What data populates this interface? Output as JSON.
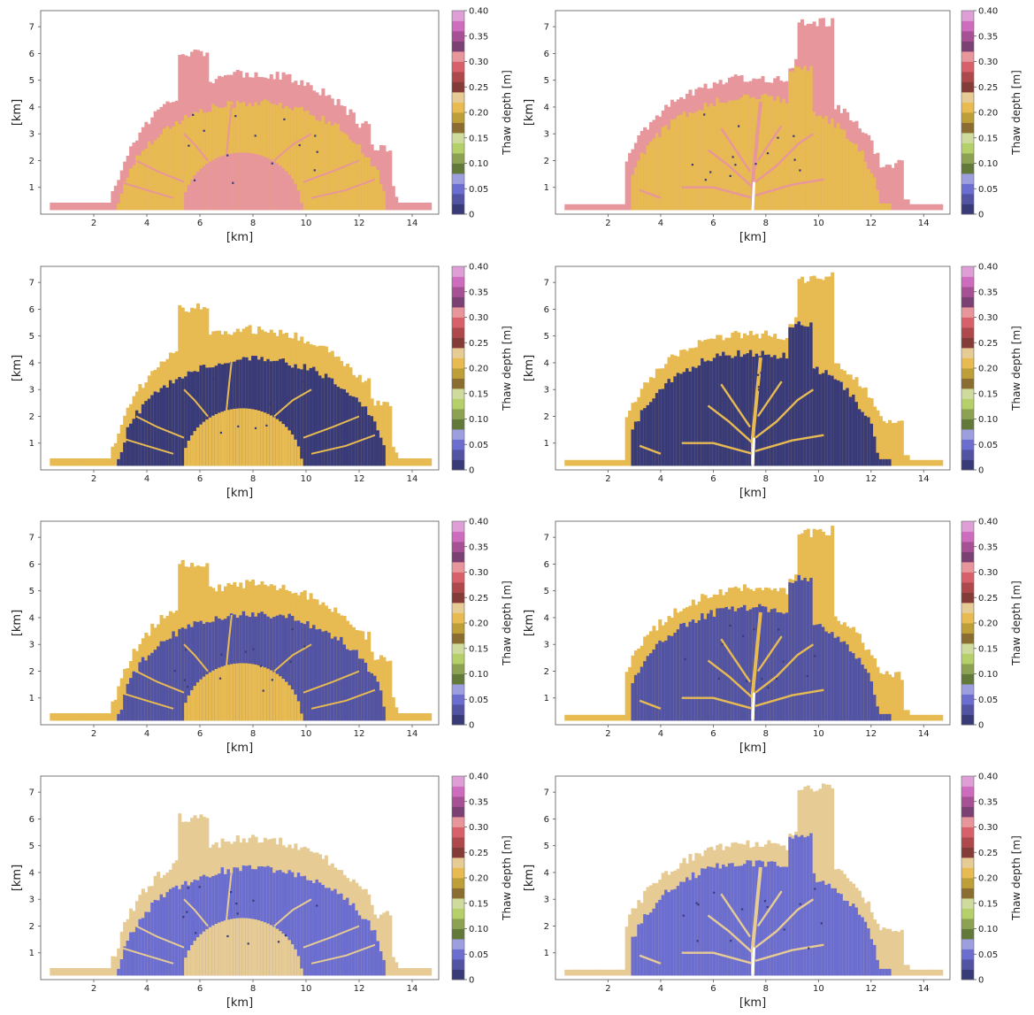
{
  "figure": {
    "rows": 4,
    "cols": 2
  },
  "colorbar": {
    "label": "Thaw depth [m]",
    "ticks": [
      "0",
      "0.05",
      "0.10",
      "0.15",
      "0.20",
      "0.25",
      "0.30",
      "0.35",
      "0.40"
    ],
    "vmin": 0,
    "vmax": 0.4,
    "colors": [
      "#393b79",
      "#5254a3",
      "#6b6ecf",
      "#9c9ede",
      "#637939",
      "#8ca252",
      "#b5cf6b",
      "#cedb9c",
      "#8c6d31",
      "#bd9e39",
      "#e7ba52",
      "#e7cb94",
      "#843c39",
      "#ad494a",
      "#d6616b",
      "#e7969c",
      "#7b4173",
      "#a55194",
      "#ce6dbd",
      "#de9ed6"
    ]
  },
  "axes": {
    "xlabel": "[km]",
    "ylabel": "[km]",
    "xticks": [
      "2",
      "4",
      "6",
      "8",
      "10",
      "12",
      "14"
    ],
    "yticks": [
      "1",
      "2",
      "3",
      "4",
      "5",
      "6",
      "7"
    ],
    "xlim": [
      0,
      15
    ],
    "ylim": [
      0,
      7.6
    ]
  },
  "chart_data": [
    {
      "type": "heatmap",
      "domain": "left",
      "row": 1,
      "col": 1,
      "xlabel": "[km]",
      "ylabel": "[km]",
      "colorbar_label": "Thaw depth [m]",
      "xlim": [
        0,
        15
      ],
      "ylim": [
        0,
        7.6
      ],
      "outer_value": 0.31,
      "inner_value": 0.21,
      "center_value": 0.31,
      "channel_value": 0.31
    },
    {
      "type": "heatmap",
      "domain": "right",
      "row": 1,
      "col": 2,
      "xlabel": "[km]",
      "ylabel": "[km]",
      "colorbar_label": "Thaw depth [m]",
      "xlim": [
        0,
        15
      ],
      "ylim": [
        0,
        7.6
      ],
      "outer_value": 0.31,
      "inner_value": 0.21,
      "center_value": 0.31,
      "channel_value": 0.31
    },
    {
      "type": "heatmap",
      "domain": "left",
      "row": 2,
      "col": 1,
      "xlabel": "[km]",
      "ylabel": "[km]",
      "colorbar_label": "Thaw depth [m]",
      "xlim": [
        0,
        15
      ],
      "ylim": [
        0,
        7.6
      ],
      "outer_value": 0.21,
      "inner_value": 0.01,
      "center_value": 0.21,
      "channel_value": 0.21
    },
    {
      "type": "heatmap",
      "domain": "right",
      "row": 2,
      "col": 2,
      "xlabel": "[km]",
      "ylabel": "[km]",
      "colorbar_label": "Thaw depth [m]",
      "xlim": [
        0,
        15
      ],
      "ylim": [
        0,
        7.6
      ],
      "outer_value": 0.21,
      "inner_value": 0.01,
      "center_value": 0.21,
      "channel_value": 0.21
    },
    {
      "type": "heatmap",
      "domain": "left",
      "row": 3,
      "col": 1,
      "xlabel": "[km]",
      "ylabel": "[km]",
      "colorbar_label": "Thaw depth [m]",
      "xlim": [
        0,
        15
      ],
      "ylim": [
        0,
        7.6
      ],
      "outer_value": 0.21,
      "inner_value": 0.03,
      "center_value": 0.21,
      "channel_value": 0.21
    },
    {
      "type": "heatmap",
      "domain": "right",
      "row": 3,
      "col": 2,
      "xlabel": "[km]",
      "ylabel": "[km]",
      "colorbar_label": "Thaw depth [m]",
      "xlim": [
        0,
        15
      ],
      "ylim": [
        0,
        7.6
      ],
      "outer_value": 0.21,
      "inner_value": 0.03,
      "center_value": 0.21,
      "channel_value": 0.21
    },
    {
      "type": "heatmap",
      "domain": "left",
      "row": 4,
      "col": 1,
      "xlabel": "[km]",
      "ylabel": "[km]",
      "colorbar_label": "Thaw depth [m]",
      "xlim": [
        0,
        15
      ],
      "ylim": [
        0,
        7.6
      ],
      "outer_value": 0.23,
      "inner_value": 0.05,
      "center_value": 0.23,
      "channel_value": 0.23
    },
    {
      "type": "heatmap",
      "domain": "right",
      "row": 4,
      "col": 2,
      "xlabel": "[km]",
      "ylabel": "[km]",
      "colorbar_label": "Thaw depth [m]",
      "xlim": [
        0,
        15
      ],
      "ylim": [
        0,
        7.6
      ],
      "outer_value": 0.23,
      "inner_value": 0.05,
      "center_value": 0.23,
      "channel_value": 0.23
    }
  ]
}
